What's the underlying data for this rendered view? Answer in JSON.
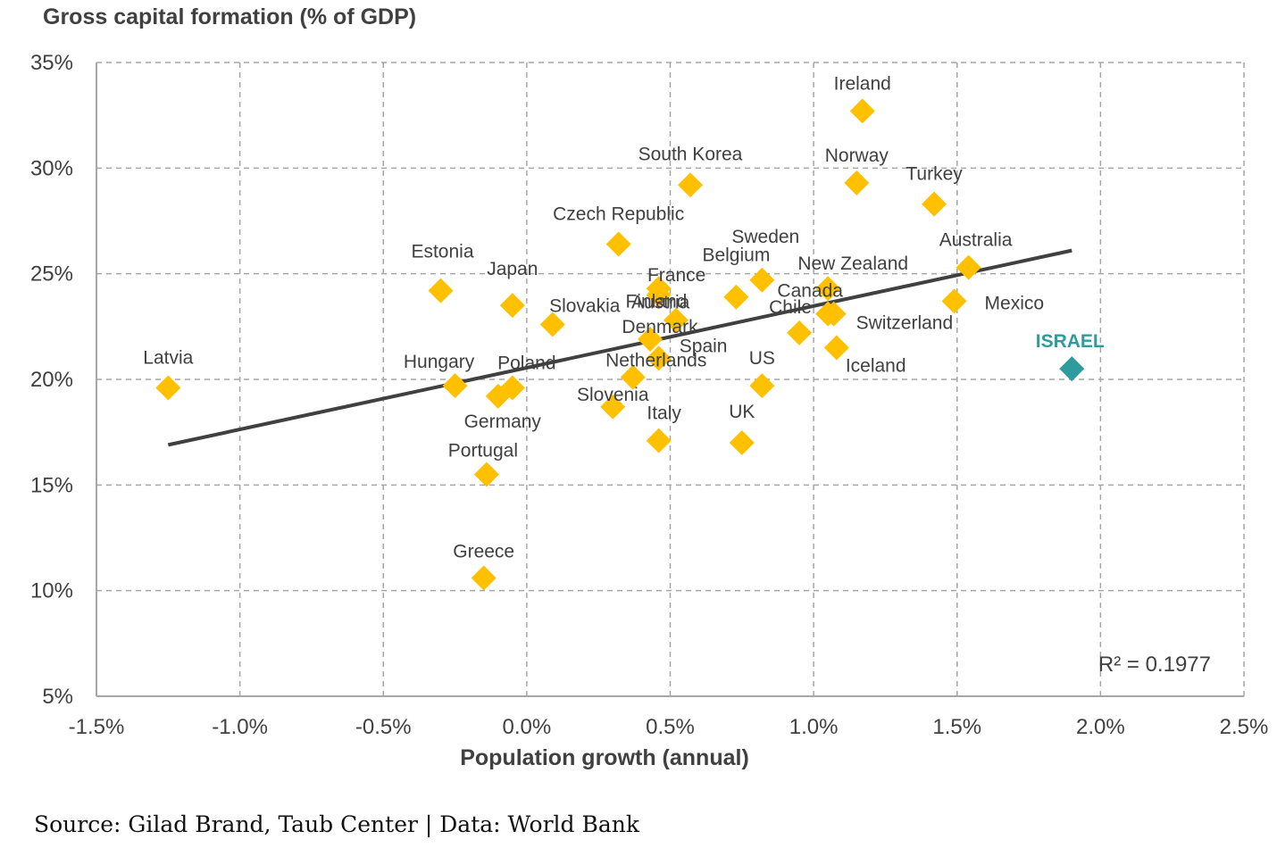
{
  "chart_data": {
    "type": "scatter",
    "ylabel": "Gross capital formation (% of GDP)",
    "xlabel": "Population growth (annual)",
    "xlim": [
      -1.5,
      2.5
    ],
    "ylim": [
      5,
      35
    ],
    "xticks": [
      -1.5,
      -1.0,
      -0.5,
      0.0,
      0.5,
      1.0,
      1.5,
      2.0,
      2.5
    ],
    "xtick_labels": [
      "-1.5%",
      "-1.0%",
      "-0.5%",
      "0.0%",
      "0.5%",
      "1.0%",
      "1.5%",
      "2.0%",
      "2.5%"
    ],
    "yticks": [
      5,
      10,
      15,
      20,
      25,
      30,
      35
    ],
    "ytick_labels": [
      "5%",
      "10%",
      "15%",
      "20%",
      "25%",
      "30%",
      "35%"
    ],
    "grid": true,
    "points": [
      {
        "label": "Latvia",
        "x": -1.25,
        "y": 19.6
      },
      {
        "label": "Estonia",
        "x": -0.3,
        "y": 24.2
      },
      {
        "label": "Japan",
        "x": -0.05,
        "y": 23.5
      },
      {
        "label": "Hungary",
        "x": -0.25,
        "y": 19.7
      },
      {
        "label": "Poland",
        "x": -0.05,
        "y": 19.6
      },
      {
        "label": "Germany",
        "x": -0.1,
        "y": 19.2
      },
      {
        "label": "Portugal",
        "x": -0.14,
        "y": 15.5
      },
      {
        "label": "Greece",
        "x": -0.15,
        "y": 10.6
      },
      {
        "label": "Slovakia",
        "x": 0.09,
        "y": 22.6
      },
      {
        "label": "Czech Republic",
        "x": 0.32,
        "y": 26.4
      },
      {
        "label": "South Korea",
        "x": 0.57,
        "y": 29.2
      },
      {
        "label": "Austria",
        "x": 0.46,
        "y": 24.0
      },
      {
        "label": "Belgium",
        "x": 0.73,
        "y": 23.9
      },
      {
        "label": "Sweden",
        "x": 0.82,
        "y": 24.7
      },
      {
        "label": "France",
        "x": 0.46,
        "y": 24.3
      },
      {
        "label": "Finland",
        "x": 0.52,
        "y": 22.8
      },
      {
        "label": "Denmark",
        "x": 0.43,
        "y": 21.9
      },
      {
        "label": "Spain",
        "x": 0.46,
        "y": 21.0
      },
      {
        "label": "Netherlands",
        "x": 0.37,
        "y": 20.1
      },
      {
        "label": "Slovenia",
        "x": 0.3,
        "y": 18.7
      },
      {
        "label": "Italy",
        "x": 0.46,
        "y": 17.1
      },
      {
        "label": "UK",
        "x": 0.75,
        "y": 17.0
      },
      {
        "label": "US",
        "x": 0.82,
        "y": 19.7
      },
      {
        "label": "Chile",
        "x": 0.95,
        "y": 22.2
      },
      {
        "label": "Canada",
        "x": 1.05,
        "y": 23.1
      },
      {
        "label": "New Zealand",
        "x": 1.05,
        "y": 24.3
      },
      {
        "label": "Switzerland",
        "x": 1.07,
        "y": 23.1
      },
      {
        "label": "Iceland",
        "x": 1.08,
        "y": 21.5
      },
      {
        "label": "Ireland",
        "x": 1.17,
        "y": 32.7
      },
      {
        "label": "Norway",
        "x": 1.15,
        "y": 29.3
      },
      {
        "label": "Turkey",
        "x": 1.42,
        "y": 28.3
      },
      {
        "label": "Australia",
        "x": 1.54,
        "y": 25.3
      },
      {
        "label": "Mexico",
        "x": 1.49,
        "y": 23.7
      },
      {
        "label": "ISRAEL",
        "x": 1.9,
        "y": 20.5,
        "highlight": true
      }
    ],
    "trendline": {
      "x": [
        -1.25,
        1.9
      ],
      "y": [
        16.9,
        26.1
      ]
    },
    "r_squared_label": "R² = 0.1977",
    "colors": {
      "points": "#FFC000",
      "highlight": "#2E9C9F",
      "trendline": "#404040",
      "grid": "#A6A6A6"
    }
  },
  "footer": {
    "source": "Source: Gilad Brand, Taub Center | Data: World Bank"
  }
}
